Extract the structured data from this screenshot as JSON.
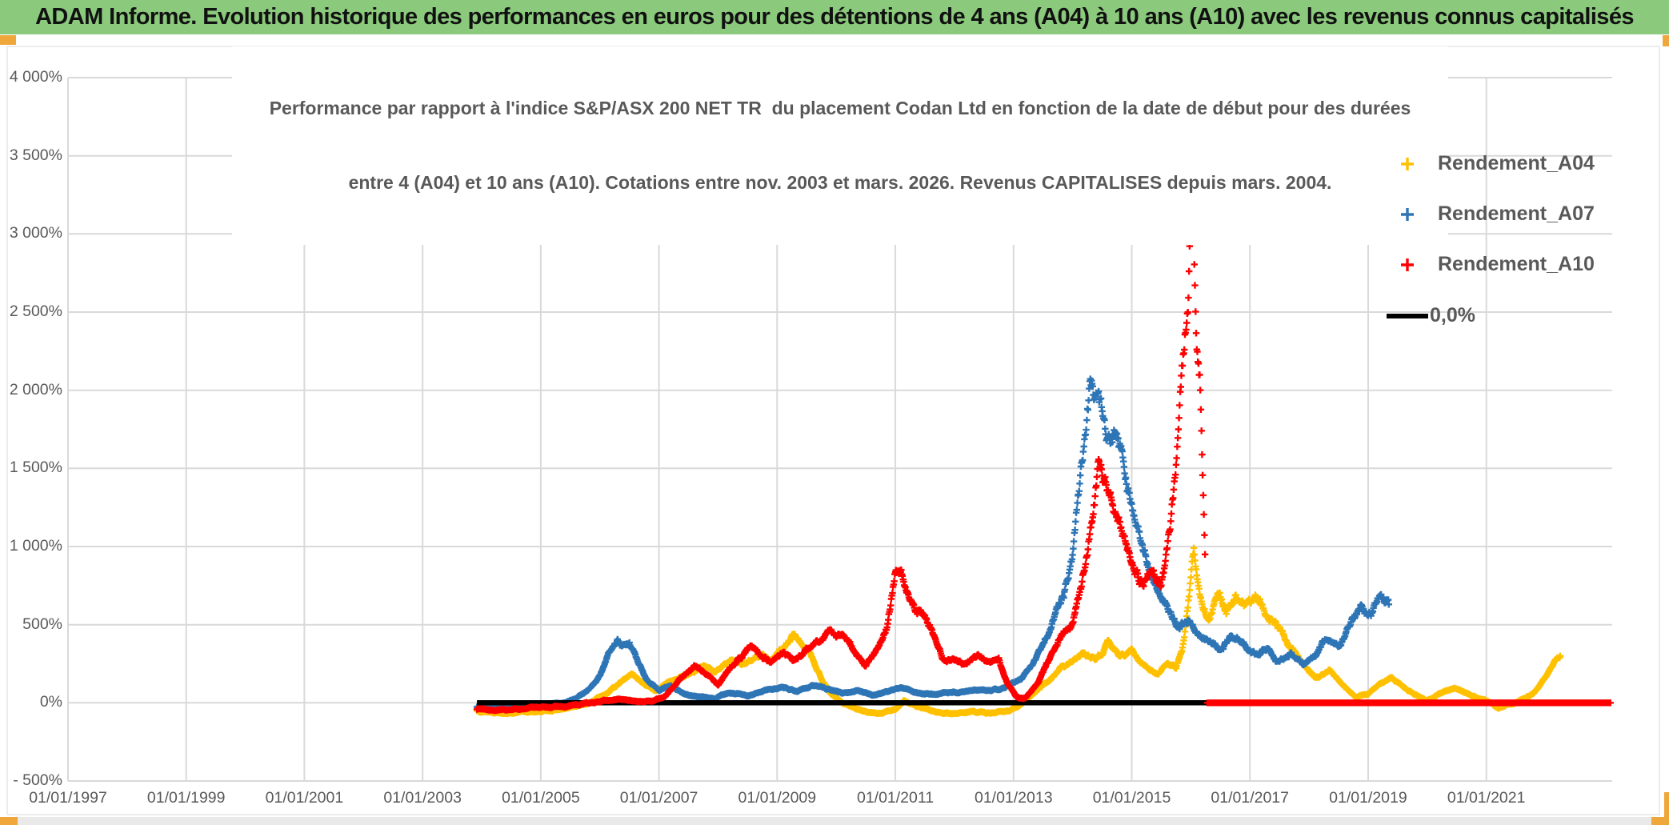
{
  "window": {
    "header_title": "ADAM Informe. Evolution historique des performances en euros pour des détentions de 4 ans (A04) à 10 ans (A10) avec les revenus connus capitalisés",
    "header_bg": "#8bca7c",
    "accent_color": "#efa63b",
    "bottom_bar_color": "#e9e9e9"
  },
  "chart_data": {
    "type": "scatter",
    "title_lines": [
      "Performance par rapport à l'indice S&P/ASX 200 NET TR  du placement Codan Ltd en fonction de la date de début pour des durées",
      "entre 4 (A04) et 10 ans (A10). Cotations entre nov. 2003 et mars. 2026. Revenus CAPITALISES depuis mars. 2004."
    ],
    "grid": true,
    "legend_position": "right-overlay",
    "colors": {
      "grid": "#d9d9d9",
      "text": "#595959"
    },
    "x_axis": {
      "tick_labels": [
        "01/01/1997",
        "01/01/1999",
        "01/01/2001",
        "01/01/2003",
        "01/01/2005",
        "01/01/2007",
        "01/01/2009",
        "01/01/2011",
        "01/01/2013",
        "01/01/2015",
        "01/01/2017",
        "01/01/2019",
        "01/01/2021"
      ],
      "tick_years": [
        1997,
        1999,
        2001,
        2003,
        2005,
        2007,
        2009,
        2011,
        2013,
        2015,
        2017,
        2019,
        2021
      ],
      "min_year": 1997,
      "max_year": 2023.13
    },
    "y_axis": {
      "tick_labels": [
        "4 000%",
        "3 500%",
        "3 000%",
        "2 500%",
        "2 000%",
        "1 500%",
        "1 000%",
        "500%",
        "0%",
        "- 500%"
      ],
      "tick_values": [
        4000,
        3500,
        3000,
        2500,
        2000,
        1500,
        1000,
        500,
        0,
        -500
      ],
      "min": -500,
      "max": 4000,
      "step": 500,
      "unit": "%"
    },
    "series": [
      {
        "name": "Rendement_A04",
        "color": "#FFC000",
        "marker": "plus",
        "anchor_segments": [
          [
            [
              2003.92,
              -50
            ],
            [
              2004.2,
              -58
            ],
            [
              2004.6,
              -62
            ],
            [
              2005,
              -55
            ],
            [
              2005.4,
              -40
            ],
            [
              2005.8,
              -5
            ],
            [
              2006.1,
              60
            ],
            [
              2006.35,
              130
            ],
            [
              2006.55,
              185
            ],
            [
              2006.75,
              120
            ],
            [
              2006.95,
              80
            ],
            [
              2007.2,
              140
            ],
            [
              2007.5,
              185
            ],
            [
              2007.75,
              235
            ],
            [
              2007.95,
              190
            ],
            [
              2008.2,
              280
            ],
            [
              2008.45,
              240
            ],
            [
              2008.7,
              320
            ],
            [
              2008.9,
              280
            ],
            [
              2009.1,
              350
            ],
            [
              2009.3,
              430
            ],
            [
              2009.45,
              370
            ],
            [
              2009.6,
              290
            ],
            [
              2009.75,
              160
            ],
            [
              2009.9,
              60
            ],
            [
              2010.1,
              0
            ],
            [
              2010.4,
              -50
            ],
            [
              2010.7,
              -75
            ],
            [
              2011,
              -40
            ],
            [
              2011.15,
              15
            ],
            [
              2011.4,
              -30
            ],
            [
              2011.7,
              -60
            ],
            [
              2012,
              -70
            ],
            [
              2012.3,
              -55
            ],
            [
              2012.6,
              -65
            ],
            [
              2012.9,
              -50
            ],
            [
              2013.1,
              -20
            ],
            [
              2013.35,
              60
            ],
            [
              2013.6,
              150
            ],
            [
              2013.8,
              230
            ],
            [
              2014,
              260
            ],
            [
              2014.2,
              330
            ],
            [
              2014.4,
              280
            ],
            [
              2014.6,
              380
            ],
            [
              2014.8,
              300
            ],
            [
              2015,
              330
            ],
            [
              2015.2,
              240
            ],
            [
              2015.45,
              190
            ],
            [
              2015.6,
              260
            ],
            [
              2015.75,
              230
            ],
            [
              2015.85,
              350
            ],
            [
              2015.95,
              600
            ],
            [
              2016.05,
              950
            ],
            [
              2016.15,
              700
            ],
            [
              2016.3,
              560
            ],
            [
              2016.45,
              680
            ],
            [
              2016.6,
              590
            ],
            [
              2016.75,
              700
            ],
            [
              2016.9,
              620
            ],
            [
              2017.1,
              680
            ],
            [
              2017.3,
              540
            ],
            [
              2017.5,
              470
            ],
            [
              2017.7,
              350
            ],
            [
              2017.9,
              260
            ],
            [
              2018.1,
              160
            ],
            [
              2018.35,
              200
            ],
            [
              2018.55,
              120
            ],
            [
              2018.8,
              40
            ],
            [
              2019,
              60
            ],
            [
              2019.2,
              130
            ],
            [
              2019.4,
              160
            ],
            [
              2019.6,
              100
            ],
            [
              2019.8,
              50
            ],
            [
              2020,
              20
            ],
            [
              2020.2,
              60
            ],
            [
              2020.5,
              90
            ],
            [
              2020.8,
              40
            ],
            [
              2021,
              10
            ],
            [
              2021.2,
              -30
            ],
            [
              2021.5,
              0
            ],
            [
              2021.8,
              60
            ],
            [
              2022,
              160
            ],
            [
              2022.25,
              300
            ]
          ]
        ]
      },
      {
        "name": "Rendement_A07",
        "color": "#2E75B6",
        "marker": "plus",
        "anchor_segments": [
          [
            [
              2003.92,
              -25
            ],
            [
              2004.3,
              -30
            ],
            [
              2004.7,
              -25
            ],
            [
              2005,
              -15
            ],
            [
              2005.3,
              -5
            ],
            [
              2005.6,
              25
            ],
            [
              2005.8,
              80
            ],
            [
              2006,
              170
            ],
            [
              2006.15,
              300
            ],
            [
              2006.3,
              400
            ],
            [
              2006.4,
              360
            ],
            [
              2006.5,
              385
            ],
            [
              2006.65,
              250
            ],
            [
              2006.8,
              150
            ],
            [
              2007,
              80
            ],
            [
              2007.2,
              110
            ],
            [
              2007.45,
              60
            ],
            [
              2007.7,
              35
            ],
            [
              2007.95,
              25
            ],
            [
              2008.2,
              65
            ],
            [
              2008.5,
              45
            ],
            [
              2008.8,
              85
            ],
            [
              2009.1,
              95
            ],
            [
              2009.35,
              75
            ],
            [
              2009.6,
              110
            ],
            [
              2009.85,
              85
            ],
            [
              2010.1,
              60
            ],
            [
              2010.35,
              75
            ],
            [
              2010.6,
              50
            ],
            [
              2010.85,
              70
            ],
            [
              2011.1,
              95
            ],
            [
              2011.35,
              70
            ],
            [
              2011.6,
              55
            ],
            [
              2011.85,
              65
            ],
            [
              2012.1,
              70
            ],
            [
              2012.35,
              85
            ],
            [
              2012.6,
              75
            ],
            [
              2012.85,
              95
            ],
            [
              2013.05,
              140
            ],
            [
              2013.25,
              200
            ],
            [
              2013.45,
              320
            ],
            [
              2013.65,
              520
            ],
            [
              2013.85,
              700
            ],
            [
              2014,
              980
            ],
            [
              2014.15,
              1450
            ],
            [
              2014.3,
              2050
            ],
            [
              2014.45,
              1800
            ],
            [
              2014.6,
              1600
            ],
            [
              2014.75,
              1700
            ],
            [
              2014.9,
              1450
            ],
            [
              2015.05,
              1200
            ],
            [
              2015.2,
              950
            ],
            [
              2015.35,
              780
            ],
            [
              2015.5,
              650
            ],
            [
              2015.65,
              550
            ],
            [
              2015.8,
              480
            ],
            [
              2015.95,
              520
            ],
            [
              2016.1,
              460
            ],
            [
              2016.3,
              420
            ],
            [
              2016.5,
              350
            ],
            [
              2016.7,
              450
            ],
            [
              2016.9,
              380
            ],
            [
              2017.1,
              300
            ],
            [
              2017.3,
              350
            ],
            [
              2017.5,
              260
            ],
            [
              2017.7,
              320
            ],
            [
              2017.9,
              250
            ],
            [
              2018.1,
              300
            ],
            [
              2018.3,
              420
            ],
            [
              2018.5,
              360
            ],
            [
              2018.7,
              500
            ],
            [
              2018.9,
              620
            ],
            [
              2019.05,
              580
            ],
            [
              2019.2,
              680
            ],
            [
              2019.35,
              630
            ]
          ]
        ]
      },
      {
        "name": "Rendement_A10",
        "color": "#FF0000",
        "marker": "plus",
        "anchor_segments": [
          [
            [
              2003.92,
              -40
            ],
            [
              2004.3,
              -45
            ],
            [
              2004.7,
              -40
            ],
            [
              2005.1,
              -30
            ],
            [
              2005.5,
              -15
            ],
            [
              2005.9,
              5
            ],
            [
              2006.3,
              25
            ],
            [
              2006.6,
              15
            ],
            [
              2006.9,
              10
            ],
            [
              2007.1,
              40
            ],
            [
              2007.35,
              150
            ],
            [
              2007.6,
              230
            ],
            [
              2007.8,
              180
            ],
            [
              2008,
              120
            ],
            [
              2008.2,
              220
            ],
            [
              2008.4,
              300
            ],
            [
              2008.55,
              370
            ],
            [
              2008.7,
              300
            ],
            [
              2008.9,
              250
            ],
            [
              2009.1,
              330
            ],
            [
              2009.3,
              280
            ],
            [
              2009.5,
              340
            ],
            [
              2009.7,
              390
            ],
            [
              2009.9,
              450
            ],
            [
              2010.1,
              430
            ],
            [
              2010.3,
              330
            ],
            [
              2010.5,
              250
            ],
            [
              2010.7,
              350
            ],
            [
              2010.85,
              480
            ],
            [
              2011,
              870
            ],
            [
              2011.1,
              820
            ],
            [
              2011.25,
              650
            ],
            [
              2011.45,
              560
            ],
            [
              2011.6,
              480
            ],
            [
              2011.8,
              300
            ],
            [
              2012,
              280
            ],
            [
              2012.2,
              250
            ],
            [
              2012.45,
              300
            ],
            [
              2012.6,
              260
            ],
            [
              2012.75,
              280
            ],
            [
              2012.9,
              120
            ],
            [
              2013.05,
              40
            ],
            [
              2013.2,
              30
            ],
            [
              2013.4,
              120
            ],
            [
              2013.6,
              280
            ],
            [
              2013.8,
              420
            ],
            [
              2014,
              520
            ],
            [
              2014.15,
              750
            ],
            [
              2014.3,
              1100
            ],
            [
              2014.45,
              1500
            ],
            [
              2014.6,
              1350
            ],
            [
              2014.75,
              1150
            ],
            [
              2014.9,
              1000
            ],
            [
              2015.05,
              850
            ],
            [
              2015.2,
              780
            ],
            [
              2015.35,
              900
            ],
            [
              2015.5,
              750
            ],
            [
              2015.6,
              950
            ],
            [
              2015.7,
              1300
            ],
            [
              2015.8,
              1700
            ],
            [
              2015.87,
              2100
            ],
            [
              2015.95,
              2600
            ],
            [
              2016,
              3350
            ],
            [
              2016.05,
              3100
            ],
            [
              2016.1,
              2500
            ],
            [
              2016.15,
              2250
            ],
            [
              2016.2,
              1500
            ],
            [
              2016.24,
              950
            ]
          ],
          [
            [
              2016.28,
              0
            ],
            [
              2023.1,
              0
            ]
          ]
        ]
      },
      {
        "name": "0,0%",
        "color": "#000000",
        "marker": "line",
        "anchor_segments": [
          [
            [
              2003.92,
              0
            ],
            [
              2016.28,
              0
            ]
          ]
        ]
      }
    ]
  }
}
